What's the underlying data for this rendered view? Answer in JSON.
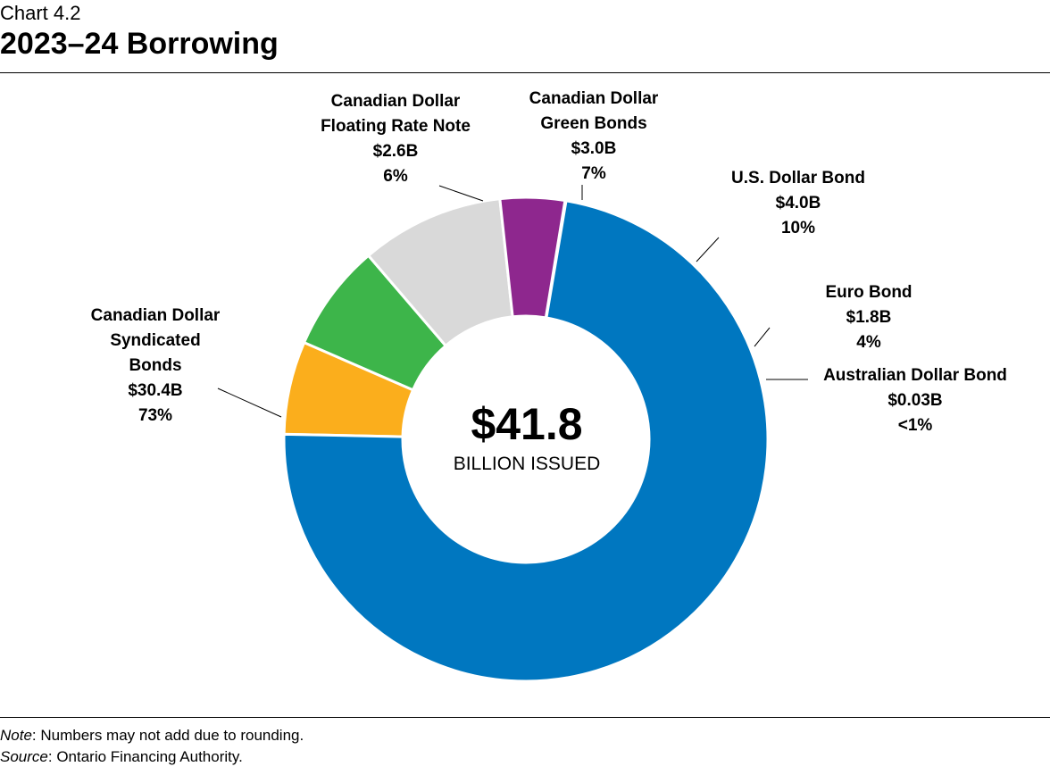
{
  "header": {
    "chart_number": "Chart 4.2",
    "title": "2023–24 Borrowing"
  },
  "center": {
    "value": "$41.8",
    "label": "BILLION ISSUED"
  },
  "footer": {
    "note_label": "Note",
    "note_text": ": Numbers may not add due to rounding.",
    "source_label": "Source",
    "source_text": ": Ontario Financing Authority."
  },
  "chart_data": {
    "type": "pie",
    "donut": true,
    "total": 41.8,
    "slices": [
      {
        "name": "Canadian Dollar Floating Rate Note",
        "lines": [
          "Canadian Dollar",
          "Floating Rate Note"
        ],
        "value": 2.6,
        "value_label": "$2.6B",
        "pct_label": "6%",
        "color": "#FBAE1C"
      },
      {
        "name": "Canadian Dollar Green Bonds",
        "lines": [
          "Canadian Dollar",
          "Green Bonds"
        ],
        "value": 3.0,
        "value_label": "$3.0B",
        "pct_label": "7%",
        "color": "#3DB54A"
      },
      {
        "name": "U.S. Dollar Bond",
        "lines": [
          "U.S. Dollar Bond"
        ],
        "value": 4.0,
        "value_label": "$4.0B",
        "pct_label": "10%",
        "color": "#D9D9D9"
      },
      {
        "name": "Euro Bond",
        "lines": [
          "Euro Bond"
        ],
        "value": 1.8,
        "value_label": "$1.8B",
        "pct_label": "4%",
        "color": "#8E278E"
      },
      {
        "name": "Australian Dollar Bond",
        "lines": [
          "Australian Dollar Bond"
        ],
        "value": 0.03,
        "value_label": "$0.03B",
        "pct_label": "<1%",
        "color": "#1F3864"
      },
      {
        "name": "Canadian Dollar Syndicated Bonds",
        "lines": [
          "Canadian Dollar",
          "Syndicated",
          "Bonds"
        ],
        "value": 30.4,
        "value_label": "$30.4B",
        "pct_label": "73%",
        "color": "#0077C0"
      }
    ]
  }
}
